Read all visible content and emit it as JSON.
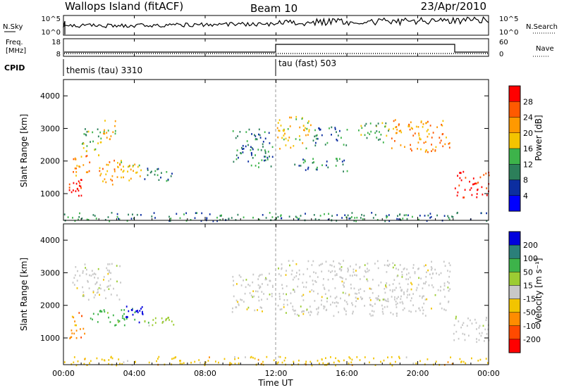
{
  "header": {
    "station": "Wallops Island (fitACF)",
    "beam": "Beam 10",
    "date": "23/Apr/2010"
  },
  "nsky_panel": {
    "left_label": "N.Sky",
    "left_ticks": [
      "10^5",
      "10^0"
    ],
    "right_label": "N.Search",
    "right_ticks": [
      "10^5",
      "10^0"
    ]
  },
  "freq_panel": {
    "left_label_1": "Freq.",
    "left_label_2": "[MHz]",
    "left_ticks": [
      "18",
      "8"
    ],
    "right_label": "Nave",
    "right_ticks": [
      "60",
      "0"
    ]
  },
  "cpid_panel": {
    "label": "CPID",
    "modes": [
      {
        "name": "themis (tau) 3310",
        "start_hour": 0
      },
      {
        "name": "tau (fast) 503",
        "start_hour": 12
      }
    ]
  },
  "x_axis": {
    "label": "Time UT",
    "tick_labels": [
      "00:00",
      "04:00",
      "08:00",
      "12:00",
      "16:00",
      "20:00",
      "00:00"
    ],
    "tick_hours": [
      0,
      4,
      8,
      12,
      16,
      20,
      24
    ]
  },
  "power_colorbar": {
    "label": "Power [dB]",
    "ticks": [
      "28",
      "24",
      "20",
      "16",
      "12",
      "8",
      "4"
    ],
    "colors": [
      "#ff0000",
      "#ff5a00",
      "#ff9900",
      "#f4c400",
      "#3db34a",
      "#2c7f5a",
      "#0c2ea0",
      "#0000ff"
    ]
  },
  "velocity_colorbar": {
    "label": "Velocity [m s⁻¹]",
    "ticks": [
      "200",
      "100",
      "50",
      "15",
      "-15",
      "-50",
      "-100",
      "-200"
    ],
    "colors": [
      "#0000dd",
      "#2b7f7a",
      "#3db34a",
      "#9ccc33",
      "#c8c8c8",
      "#f2c400",
      "#ff8c00",
      "#ff4a00",
      "#ff0000"
    ]
  },
  "chart_data": [
    {
      "type": "heatmap",
      "title": "",
      "xlabel": "",
      "ylabel": "Slant Range [km]",
      "ylim": [
        180,
        4500
      ],
      "xlim": [
        0,
        24
      ],
      "yticks": [
        1000,
        2000,
        3000,
        4000
      ],
      "quantity": "Power",
      "regions": [
        {
          "t": [
            0.3,
            1.0
          ],
          "r": [
            900,
            1500
          ],
          "level": 28
        },
        {
          "t": [
            0.5,
            1.6
          ],
          "r": [
            1500,
            2200
          ],
          "level": 20
        },
        {
          "t": [
            1.0,
            2.0
          ],
          "r": [
            2200,
            3100
          ],
          "level": 12
        },
        {
          "t": [
            2.0,
            3.0
          ],
          "r": [
            2500,
            3300
          ],
          "level": 16
        },
        {
          "t": [
            2.0,
            3.4
          ],
          "r": [
            1300,
            2100
          ],
          "level": 20
        },
        {
          "t": [
            3.0,
            4.5
          ],
          "r": [
            1400,
            2000
          ],
          "level": 16
        },
        {
          "t": [
            4.5,
            6.2
          ],
          "r": [
            1400,
            1800
          ],
          "level": 8
        },
        {
          "t": [
            9.5,
            11.8
          ],
          "r": [
            1800,
            3000
          ],
          "level": 8
        },
        {
          "t": [
            12.0,
            14.0
          ],
          "r": [
            2400,
            3400
          ],
          "level": 16
        },
        {
          "t": [
            13.0,
            16.0
          ],
          "r": [
            1700,
            2100
          ],
          "level": 8
        },
        {
          "t": [
            14.0,
            16.0
          ],
          "r": [
            2500,
            3100
          ],
          "level": 8
        },
        {
          "t": [
            16.5,
            18.5
          ],
          "r": [
            2600,
            3200
          ],
          "level": 12
        },
        {
          "t": [
            18.5,
            21.8
          ],
          "r": [
            2300,
            3300
          ],
          "level": 20
        },
        {
          "t": [
            22.0,
            24.0
          ],
          "r": [
            900,
            1700
          ],
          "level": 28
        },
        {
          "t": [
            0.0,
            24.0
          ],
          "r": [
            180,
            450
          ],
          "level": 8
        }
      ]
    },
    {
      "type": "heatmap",
      "title": "",
      "xlabel": "Time UT",
      "ylabel": "Slant Range [km]",
      "ylim": [
        180,
        4500
      ],
      "xlim": [
        0,
        24
      ],
      "yticks": [
        1000,
        2000,
        3000,
        4000
      ],
      "quantity": "Velocity",
      "regions": [
        {
          "t": [
            0.3,
            1.2
          ],
          "r": [
            900,
            1800
          ],
          "level": -50
        },
        {
          "t": [
            0.5,
            3.2
          ],
          "r": [
            2200,
            3300
          ],
          "level": 0
        },
        {
          "t": [
            1.5,
            4.0
          ],
          "r": [
            1400,
            1900
          ],
          "level": 50
        },
        {
          "t": [
            3.5,
            4.5
          ],
          "r": [
            1500,
            2000
          ],
          "level": 200
        },
        {
          "t": [
            4.5,
            6.2
          ],
          "r": [
            1400,
            1700
          ],
          "level": 15
        },
        {
          "t": [
            9.5,
            11.8
          ],
          "r": [
            1800,
            3000
          ],
          "level": 0
        },
        {
          "t": [
            12.0,
            21.8
          ],
          "r": [
            1700,
            3400
          ],
          "level": 0
        },
        {
          "t": [
            22.0,
            24.0
          ],
          "r": [
            900,
            1700
          ],
          "level": 0
        },
        {
          "t": [
            0.0,
            24.0
          ],
          "r": [
            180,
            450
          ],
          "level": -15
        }
      ]
    }
  ]
}
